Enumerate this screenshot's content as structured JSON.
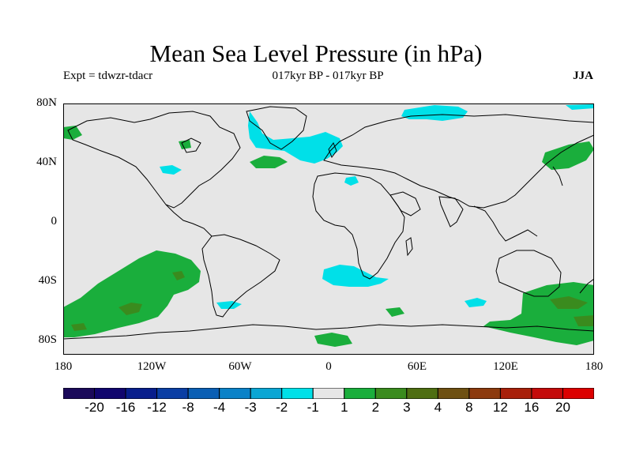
{
  "header": {
    "title": "Mean Sea Level Pressure (in hPa)",
    "experiment": "Expt = tdwzr-tdacr",
    "period": "017kyr BP - 017kyr BP",
    "season": "JJA"
  },
  "map": {
    "background_color": "#e6e6e6",
    "coastline_color": "#000000",
    "lat_labels": [
      "80N",
      "40N",
      "0",
      "40S",
      "80S"
    ],
    "lon_labels": [
      "180",
      "120W",
      "60W",
      "0",
      "60E",
      "120E",
      "180"
    ]
  },
  "legend": {
    "colors": [
      "#1b0a5a",
      "#11066e",
      "#081e8c",
      "#0a3ea4",
      "#0a5fb4",
      "#0a82c8",
      "#0aa6d4",
      "#00e0e8",
      "#e6e6e6",
      "#1aae3c",
      "#3a8b1e",
      "#4e6e12",
      "#6e5012",
      "#8c3a0e",
      "#a8200a",
      "#c40a0a",
      "#dc0000"
    ],
    "labels": [
      "-20",
      "-16",
      "-12",
      "-8",
      "-4",
      "-3",
      "-2",
      "-1",
      "1",
      "2",
      "3",
      "4",
      "8",
      "12",
      "16",
      "20"
    ]
  },
  "anomaly_colors": {
    "negative": "#00e0e8",
    "positive": "#1aae3c",
    "strong_positive": "#3a8b1e"
  }
}
